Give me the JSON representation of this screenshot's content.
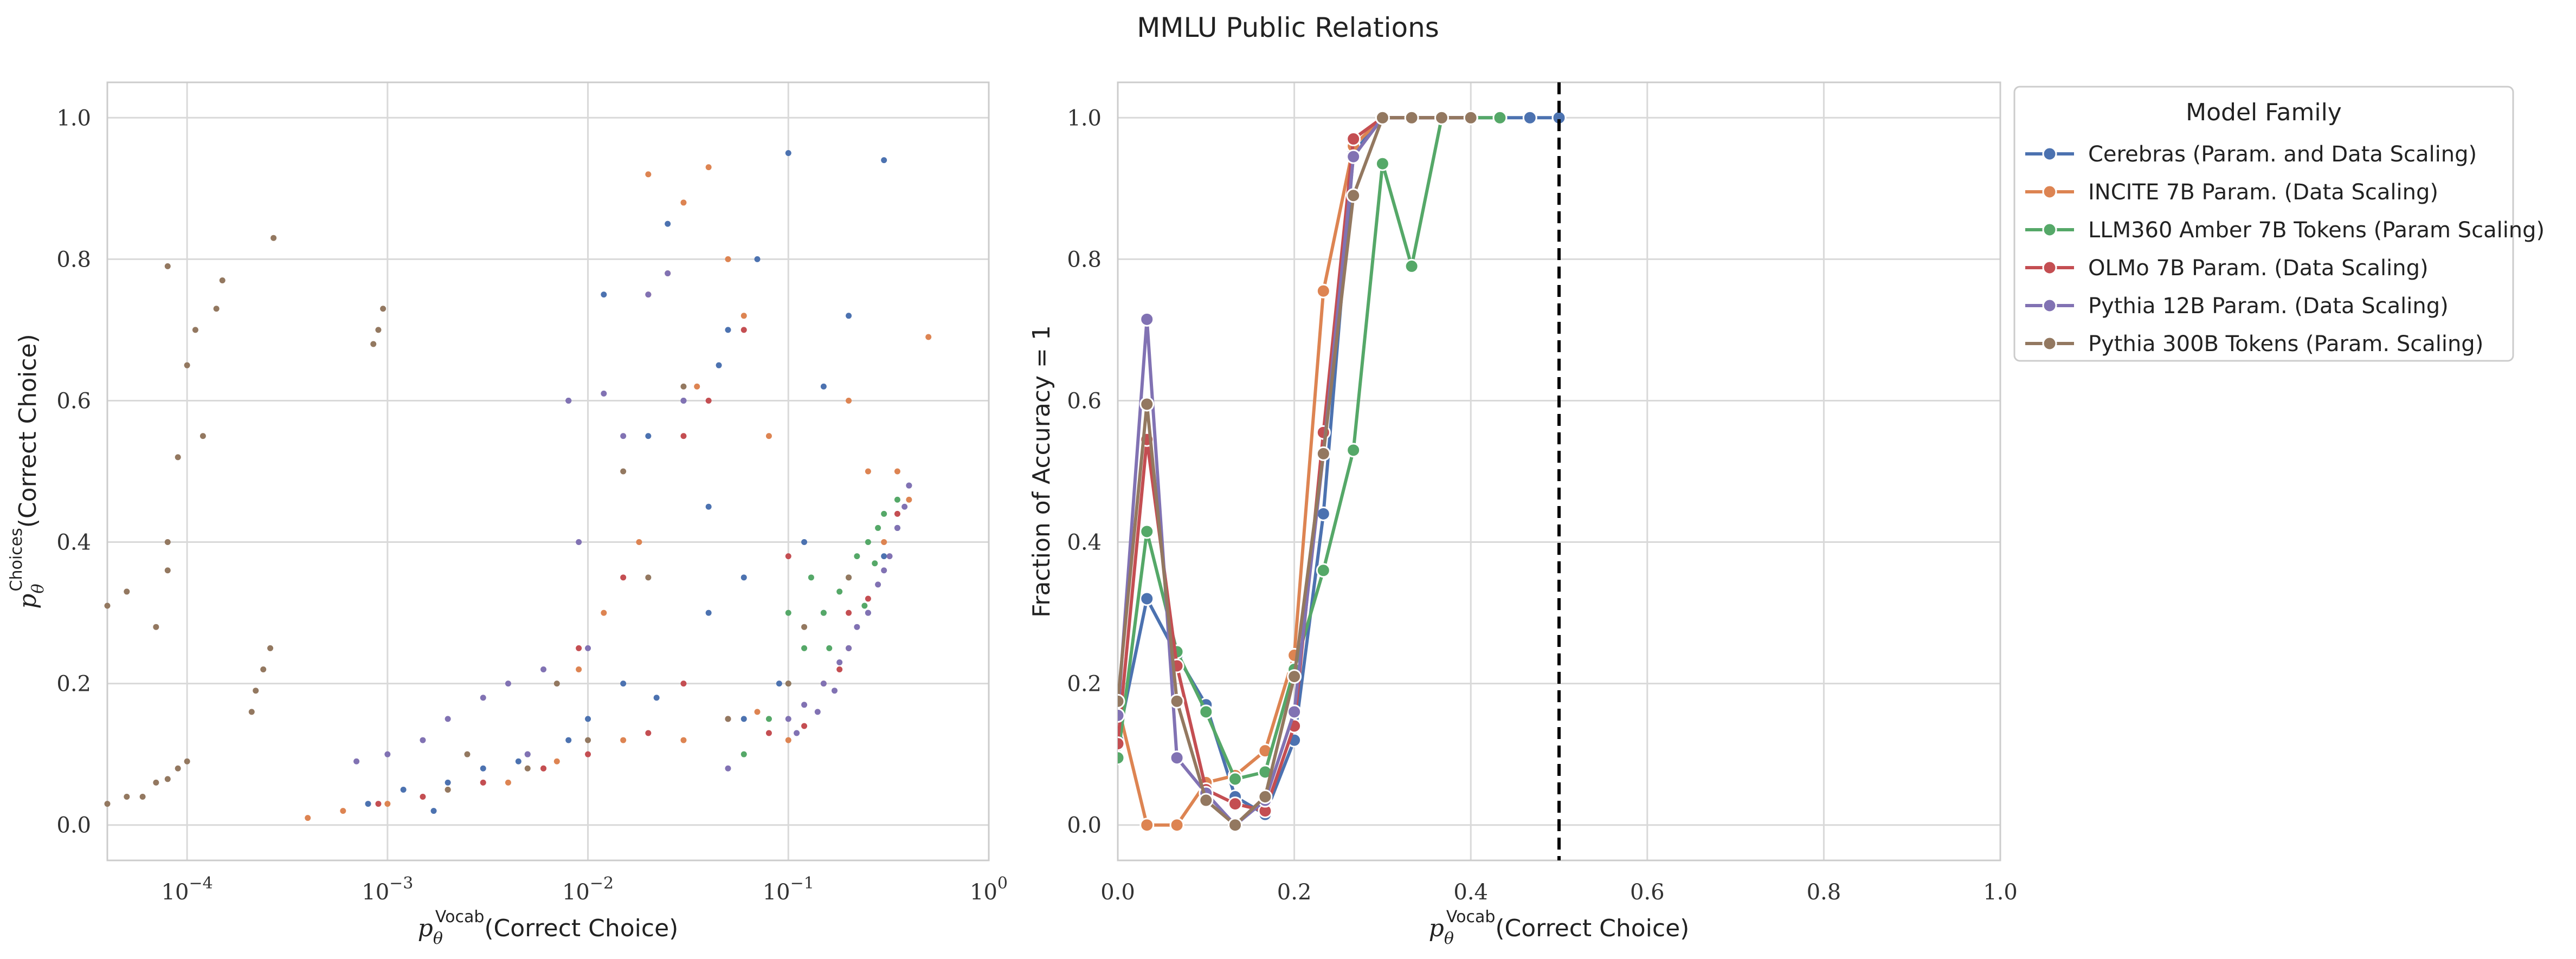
{
  "figure": {
    "title": "MMLU Public Relations"
  },
  "chart_data": [
    {
      "type": "scatter",
      "xscale": "log",
      "xlim": [
        4e-05,
        1.0
      ],
      "ylim": [
        -0.05,
        1.05
      ],
      "grid": true,
      "xlabel": "p_θ^Vocab(Correct Choice)",
      "ylabel": "p_θ^Choices(Correct Choice)",
      "xlabel_parts": {
        "sym": "p",
        "sub": "θ",
        "sup": "Vocab",
        "rest": "(Correct Choice)"
      },
      "ylabel_parts": {
        "sym": "p",
        "sub": "θ",
        "sup": "Choices",
        "rest": "(Correct Choice)"
      },
      "xticks": [
        {
          "value": 0.0001,
          "base": "10",
          "exp": "−4"
        },
        {
          "value": 0.001,
          "base": "10",
          "exp": "−3"
        },
        {
          "value": 0.01,
          "base": "10",
          "exp": "−2"
        },
        {
          "value": 0.1,
          "base": "10",
          "exp": "−1"
        },
        {
          "value": 1.0,
          "base": "10",
          "exp": "0"
        }
      ],
      "yticks": [
        "0.0",
        "0.2",
        "0.4",
        "0.6",
        "0.8",
        "1.0"
      ],
      "series": [
        {
          "color": "#4c72b0",
          "points": [
            [
              0.0008,
              0.03
            ],
            [
              0.0012,
              0.05
            ],
            [
              0.002,
              0.06
            ],
            [
              0.003,
              0.08
            ],
            [
              0.005,
              0.1
            ],
            [
              0.008,
              0.12
            ],
            [
              0.01,
              0.15
            ],
            [
              0.015,
              0.2
            ],
            [
              0.02,
              0.55
            ],
            [
              0.03,
              0.6
            ],
            [
              0.04,
              0.45
            ],
            [
              0.05,
              0.7
            ],
            [
              0.06,
              0.35
            ],
            [
              0.07,
              0.8
            ],
            [
              0.1,
              0.95
            ],
            [
              0.15,
              0.3
            ],
            [
              0.2,
              0.25
            ],
            [
              0.25,
              0.3
            ],
            [
              0.3,
              0.38
            ],
            [
              0.35,
              0.42
            ],
            [
              0.4,
              0.48
            ],
            [
              0.008,
              0.6
            ],
            [
              0.012,
              0.75
            ],
            [
              0.025,
              0.85
            ],
            [
              0.045,
              0.65
            ],
            [
              0.0017,
              0.02
            ],
            [
              0.0045,
              0.09
            ],
            [
              0.06,
              0.15
            ],
            [
              0.09,
              0.2
            ],
            [
              0.12,
              0.4
            ],
            [
              0.3,
              0.94
            ],
            [
              0.2,
              0.72
            ],
            [
              0.15,
              0.62
            ],
            [
              0.04,
              0.3
            ],
            [
              0.022,
              0.18
            ]
          ]
        },
        {
          "color": "#dd8452",
          "points": [
            [
              0.0004,
              0.01
            ],
            [
              0.0006,
              0.02
            ],
            [
              0.001,
              0.03
            ],
            [
              0.002,
              0.05
            ],
            [
              0.004,
              0.06
            ],
            [
              0.007,
              0.09
            ],
            [
              0.015,
              0.12
            ],
            [
              0.02,
              0.92
            ],
            [
              0.03,
              0.88
            ],
            [
              0.04,
              0.93
            ],
            [
              0.05,
              0.8
            ],
            [
              0.06,
              0.72
            ],
            [
              0.08,
              0.55
            ],
            [
              0.1,
              0.12
            ],
            [
              0.15,
              0.2
            ],
            [
              0.2,
              0.6
            ],
            [
              0.25,
              0.5
            ],
            [
              0.3,
              0.4
            ],
            [
              0.4,
              0.46
            ],
            [
              0.5,
              0.69
            ],
            [
              0.025,
              0.78
            ],
            [
              0.035,
              0.62
            ],
            [
              0.012,
              0.3
            ],
            [
              0.018,
              0.4
            ],
            [
              0.03,
              0.12
            ],
            [
              0.07,
              0.16
            ],
            [
              0.2,
              0.25
            ],
            [
              0.35,
              0.5
            ],
            [
              0.006,
              0.08
            ],
            [
              0.009,
              0.22
            ]
          ]
        },
        {
          "color": "#55a868",
          "points": [
            [
              0.06,
              0.1
            ],
            [
              0.08,
              0.15
            ],
            [
              0.1,
              0.2
            ],
            [
              0.12,
              0.25
            ],
            [
              0.15,
              0.3
            ],
            [
              0.18,
              0.33
            ],
            [
              0.2,
              0.35
            ],
            [
              0.22,
              0.38
            ],
            [
              0.25,
              0.4
            ],
            [
              0.28,
              0.42
            ],
            [
              0.3,
              0.44
            ],
            [
              0.35,
              0.46
            ],
            [
              0.1,
              0.3
            ],
            [
              0.13,
              0.35
            ],
            [
              0.16,
              0.25
            ],
            [
              0.24,
              0.31
            ],
            [
              0.27,
              0.37
            ]
          ]
        },
        {
          "color": "#c44e52",
          "points": [
            [
              0.0009,
              0.03
            ],
            [
              0.0015,
              0.04
            ],
            [
              0.003,
              0.06
            ],
            [
              0.006,
              0.08
            ],
            [
              0.01,
              0.1
            ],
            [
              0.02,
              0.13
            ],
            [
              0.03,
              0.2
            ],
            [
              0.05,
              0.15
            ],
            [
              0.08,
              0.13
            ],
            [
              0.12,
              0.14
            ],
            [
              0.18,
              0.22
            ],
            [
              0.25,
              0.32
            ],
            [
              0.35,
              0.44
            ],
            [
              0.02,
              0.75
            ],
            [
              0.04,
              0.6
            ],
            [
              0.03,
              0.55
            ],
            [
              0.06,
              0.7
            ],
            [
              0.015,
              0.35
            ],
            [
              0.009,
              0.25
            ],
            [
              0.1,
              0.38
            ],
            [
              0.2,
              0.3
            ]
          ]
        },
        {
          "color": "#8172b3",
          "points": [
            [
              0.0007,
              0.09
            ],
            [
              0.001,
              0.1
            ],
            [
              0.0015,
              0.12
            ],
            [
              0.002,
              0.15
            ],
            [
              0.003,
              0.18
            ],
            [
              0.004,
              0.2
            ],
            [
              0.006,
              0.22
            ],
            [
              0.01,
              0.25
            ],
            [
              0.015,
              0.55
            ],
            [
              0.02,
              0.75
            ],
            [
              0.025,
              0.78
            ],
            [
              0.03,
              0.6
            ],
            [
              0.008,
              0.6
            ],
            [
              0.012,
              0.61
            ],
            [
              0.1,
              0.15
            ],
            [
              0.12,
              0.17
            ],
            [
              0.15,
              0.2
            ],
            [
              0.18,
              0.23
            ],
            [
              0.2,
              0.25
            ],
            [
              0.22,
              0.28
            ],
            [
              0.25,
              0.3
            ],
            [
              0.28,
              0.34
            ],
            [
              0.3,
              0.36
            ],
            [
              0.32,
              0.38
            ],
            [
              0.35,
              0.42
            ],
            [
              0.38,
              0.45
            ],
            [
              0.4,
              0.48
            ],
            [
              0.11,
              0.13
            ],
            [
              0.14,
              0.16
            ],
            [
              0.17,
              0.19
            ],
            [
              0.005,
              0.1
            ],
            [
              0.009,
              0.4
            ],
            [
              0.05,
              0.08
            ]
          ]
        },
        {
          "color": "#937860",
          "points": [
            [
              4e-05,
              0.03
            ],
            [
              5e-05,
              0.04
            ],
            [
              6e-05,
              0.04
            ],
            [
              4e-05,
              0.31
            ],
            [
              5e-05,
              0.33
            ],
            [
              7e-05,
              0.28
            ],
            [
              8e-05,
              0.36
            ],
            [
              8e-05,
              0.4
            ],
            [
              8e-05,
              0.79
            ],
            [
              0.0001,
              0.65
            ],
            [
              0.00011,
              0.7
            ],
            [
              0.00012,
              0.55
            ],
            [
              9e-05,
              0.52
            ],
            [
              0.0001,
              0.09
            ],
            [
              9e-05,
              0.08
            ],
            [
              8e-05,
              0.065
            ],
            [
              7e-05,
              0.06
            ],
            [
              0.00015,
              0.77
            ],
            [
              0.00014,
              0.73
            ],
            [
              0.00022,
              0.19
            ],
            [
              0.00024,
              0.22
            ],
            [
              0.00026,
              0.25
            ],
            [
              0.00021,
              0.16
            ],
            [
              0.00027,
              0.83
            ],
            [
              0.0009,
              0.7
            ],
            [
              0.00095,
              0.73
            ],
            [
              0.00085,
              0.68
            ],
            [
              0.002,
              0.05
            ],
            [
              0.005,
              0.08
            ],
            [
              0.01,
              0.12
            ],
            [
              0.02,
              0.35
            ],
            [
              0.05,
              0.15
            ],
            [
              0.1,
              0.2
            ],
            [
              0.2,
              0.35
            ],
            [
              0.03,
              0.62
            ],
            [
              0.015,
              0.5
            ],
            [
              0.007,
              0.2
            ],
            [
              0.12,
              0.28
            ],
            [
              0.0025,
              0.1
            ]
          ]
        }
      ]
    },
    {
      "type": "line",
      "xlim": [
        0.0,
        1.0
      ],
      "ylim": [
        -0.05,
        1.05
      ],
      "grid": true,
      "xlabel": "p_θ^Vocab(Correct Choice)",
      "ylabel": "Fraction of Accuracy = 1",
      "xlabel_parts": {
        "sym": "p",
        "sub": "θ",
        "sup": "Vocab",
        "rest": "(Correct Choice)"
      },
      "xticks": [
        "0.0",
        "0.2",
        "0.4",
        "0.6",
        "0.8",
        "1.0"
      ],
      "yticks": [
        "0.0",
        "0.2",
        "0.4",
        "0.6",
        "0.8",
        "1.0"
      ],
      "vline": {
        "x": 0.5,
        "style": "dashed",
        "color": "#000000"
      },
      "legend": {
        "title": "Model Family",
        "placement": "outside upper-right"
      },
      "series": [
        {
          "name": "Cerebras (Param. and Data Scaling)",
          "color": "#4c72b0",
          "x": [
            0.0,
            0.033,
            0.067,
            0.1,
            0.133,
            0.167,
            0.2,
            0.233,
            0.267,
            0.3,
            0.333,
            0.367,
            0.4,
            0.433,
            0.467,
            0.5
          ],
          "y": [
            0.12,
            0.32,
            0.24,
            0.17,
            0.04,
            0.015,
            0.12,
            0.44,
            0.95,
            1.0,
            1.0,
            1.0,
            1.0,
            1.0,
            1.0,
            1.0
          ]
        },
        {
          "name": "INCITE 7B Param. (Data Scaling)",
          "color": "#dd8452",
          "x": [
            0.0,
            0.033,
            0.067,
            0.1,
            0.133,
            0.167,
            0.2,
            0.233,
            0.267,
            0.3,
            0.333,
            0.367,
            0.4
          ],
          "y": [
            0.17,
            0.0,
            0.0,
            0.06,
            0.07,
            0.105,
            0.24,
            0.755,
            0.96,
            1.0,
            1.0,
            1.0,
            1.0
          ]
        },
        {
          "name": "LLM360 Amber 7B Tokens (Param Scaling)",
          "color": "#55a868",
          "x": [
            0.0,
            0.033,
            0.067,
            0.1,
            0.133,
            0.167,
            0.2,
            0.233,
            0.267,
            0.3,
            0.333,
            0.367,
            0.4,
            0.433
          ],
          "y": [
            0.095,
            0.415,
            0.245,
            0.16,
            0.065,
            0.075,
            0.22,
            0.36,
            0.53,
            0.935,
            0.79,
            1.0,
            1.0,
            1.0
          ]
        },
        {
          "name": "OLMo 7B Param. (Data Scaling)",
          "color": "#c44e52",
          "x": [
            0.0,
            0.033,
            0.067,
            0.1,
            0.133,
            0.167,
            0.2,
            0.233,
            0.267,
            0.3,
            0.333,
            0.367,
            0.4
          ],
          "y": [
            0.115,
            0.545,
            0.225,
            0.05,
            0.03,
            0.02,
            0.14,
            0.555,
            0.97,
            1.0,
            1.0,
            1.0,
            1.0
          ]
        },
        {
          "name": "Pythia 12B Param. (Data Scaling)",
          "color": "#8172b3",
          "x": [
            0.0,
            0.033,
            0.067,
            0.1,
            0.133,
            0.167,
            0.2,
            0.233,
            0.267,
            0.3,
            0.333,
            0.367,
            0.4
          ],
          "y": [
            0.155,
            0.715,
            0.095,
            0.045,
            0.0,
            0.035,
            0.16,
            0.525,
            0.945,
            1.0,
            1.0,
            1.0,
            1.0
          ]
        },
        {
          "name": "Pythia 300B Tokens (Param. Scaling)",
          "color": "#937860",
          "x": [
            0.0,
            0.033,
            0.067,
            0.1,
            0.133,
            0.167,
            0.2,
            0.233,
            0.267,
            0.3,
            0.333,
            0.367,
            0.4
          ],
          "y": [
            0.175,
            0.595,
            0.175,
            0.035,
            0.0,
            0.04,
            0.21,
            0.525,
            0.89,
            1.0,
            1.0,
            1.0,
            1.0
          ]
        }
      ]
    }
  ]
}
